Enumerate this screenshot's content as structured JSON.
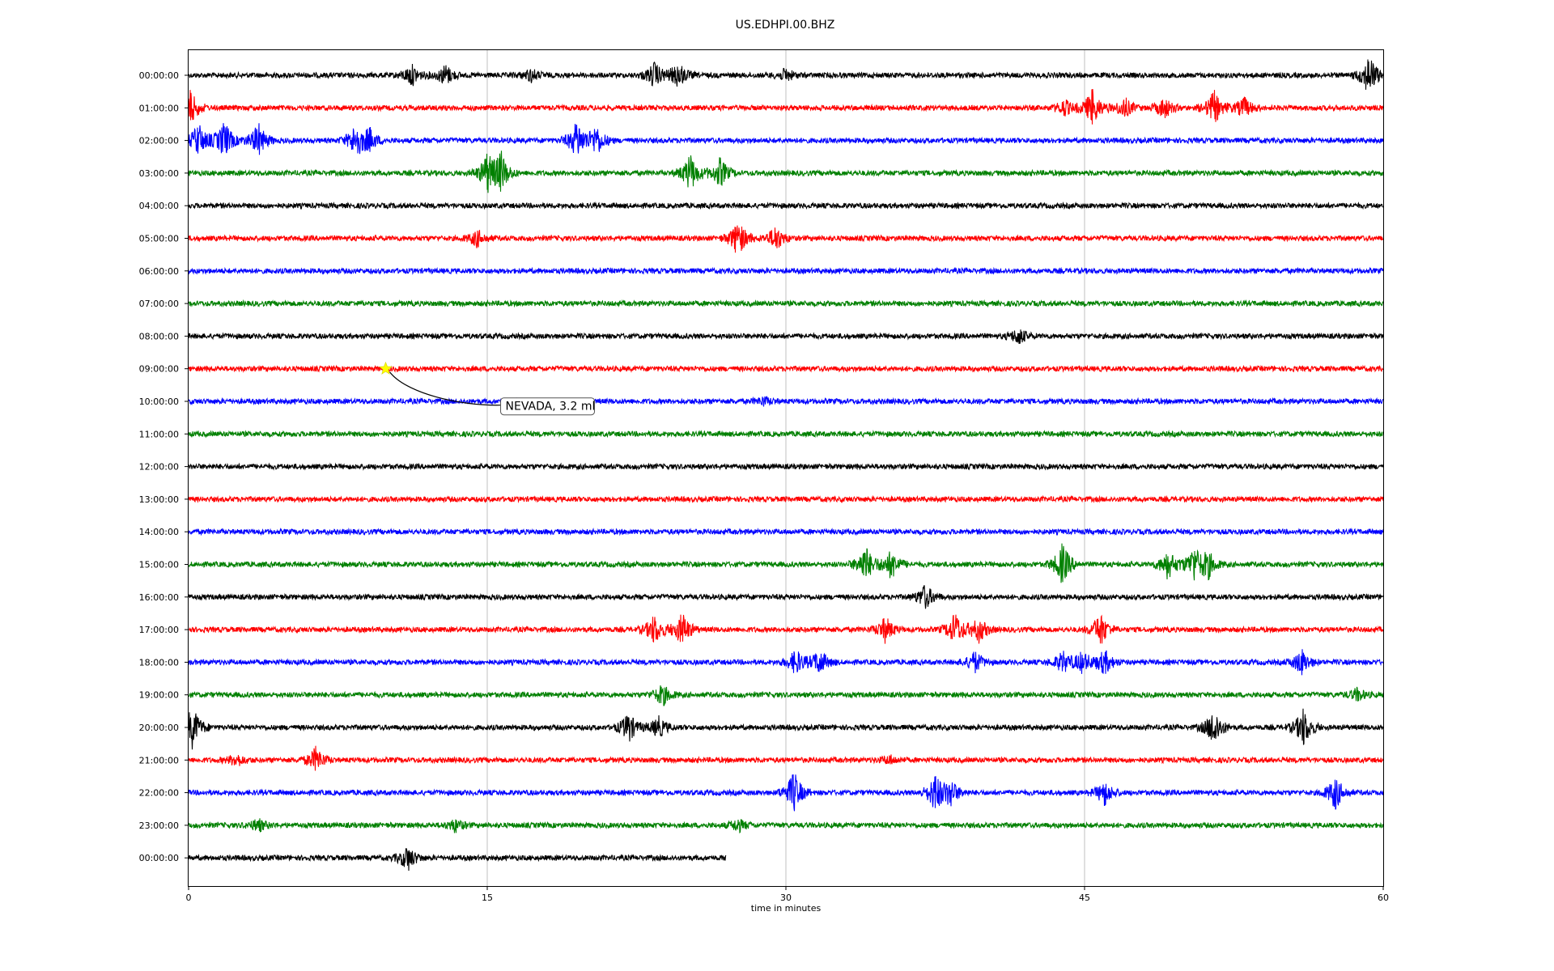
{
  "chart_data": {
    "type": "line",
    "title": "US.EDHPI.00.BHZ",
    "xlabel": "time in minutes",
    "xlim": [
      0,
      60
    ],
    "x_ticks": [
      0,
      15,
      30,
      45,
      60
    ],
    "grid": "vertical",
    "trace_colors": [
      "#000000",
      "#ff0000",
      "#0000ff",
      "#008000"
    ],
    "rows": [
      {
        "label": "00:00:00",
        "end_minute": 60,
        "events": [
          [
            11.2,
            0.5
          ],
          [
            12.9,
            0.5
          ],
          [
            17.2,
            0.3
          ],
          [
            23.4,
            0.6
          ],
          [
            24.6,
            0.6
          ],
          [
            30.0,
            0.3
          ],
          [
            59.3,
            1.0
          ]
        ]
      },
      {
        "label": "01:00:00",
        "end_minute": 60,
        "events": [
          [
            0.1,
            0.8
          ],
          [
            44.0,
            0.4
          ],
          [
            45.4,
            0.9
          ],
          [
            47.0,
            0.5
          ],
          [
            49.0,
            0.5
          ],
          [
            51.5,
            0.8
          ],
          [
            53.0,
            0.5
          ]
        ]
      },
      {
        "label": "02:00:00",
        "end_minute": 60,
        "events": [
          [
            0.5,
            0.8
          ],
          [
            1.8,
            0.9
          ],
          [
            3.5,
            0.8
          ],
          [
            8.4,
            0.8
          ],
          [
            9.1,
            0.5
          ],
          [
            19.5,
            0.9
          ],
          [
            20.5,
            0.7
          ]
        ]
      },
      {
        "label": "03:00:00",
        "end_minute": 60,
        "events": [
          [
            15.0,
            0.9
          ],
          [
            15.7,
            0.9
          ],
          [
            25.2,
            0.9
          ],
          [
            26.7,
            0.7
          ]
        ]
      },
      {
        "label": "04:00:00",
        "end_minute": 60,
        "events": []
      },
      {
        "label": "05:00:00",
        "end_minute": 60,
        "events": [
          [
            14.5,
            0.4
          ],
          [
            27.6,
            0.9
          ],
          [
            29.5,
            0.6
          ]
        ]
      },
      {
        "label": "06:00:00",
        "end_minute": 60,
        "events": []
      },
      {
        "label": "07:00:00",
        "end_minute": 60,
        "events": []
      },
      {
        "label": "08:00:00",
        "end_minute": 60,
        "events": [
          [
            41.7,
            0.4
          ]
        ]
      },
      {
        "label": "09:00:00",
        "end_minute": 60,
        "events": []
      },
      {
        "label": "10:00:00",
        "end_minute": 60,
        "events": [
          [
            28.9,
            0.2
          ]
        ]
      },
      {
        "label": "11:00:00",
        "end_minute": 60,
        "events": []
      },
      {
        "label": "12:00:00",
        "end_minute": 60,
        "events": []
      },
      {
        "label": "13:00:00",
        "end_minute": 60,
        "events": []
      },
      {
        "label": "14:00:00",
        "end_minute": 60,
        "events": []
      },
      {
        "label": "15:00:00",
        "end_minute": 60,
        "events": [
          [
            34.0,
            0.9
          ],
          [
            35.3,
            0.7
          ],
          [
            43.9,
            1.0
          ],
          [
            49.2,
            0.7
          ],
          [
            50.5,
            0.8
          ],
          [
            51.2,
            0.6
          ]
        ]
      },
      {
        "label": "16:00:00",
        "end_minute": 60,
        "events": [
          [
            37.0,
            0.6
          ]
        ]
      },
      {
        "label": "17:00:00",
        "end_minute": 60,
        "events": [
          [
            23.4,
            0.7
          ],
          [
            24.8,
            0.8
          ],
          [
            35.0,
            0.6
          ],
          [
            38.5,
            0.8
          ],
          [
            39.7,
            0.6
          ],
          [
            45.8,
            0.8
          ]
        ]
      },
      {
        "label": "18:00:00",
        "end_minute": 60,
        "events": [
          [
            30.5,
            0.6
          ],
          [
            31.7,
            0.6
          ],
          [
            39.5,
            0.5
          ],
          [
            43.9,
            0.5
          ],
          [
            44.9,
            0.5
          ],
          [
            46.0,
            0.6
          ],
          [
            55.9,
            0.6
          ]
        ]
      },
      {
        "label": "19:00:00",
        "end_minute": 60,
        "events": [
          [
            23.8,
            0.5
          ],
          [
            58.7,
            0.3
          ]
        ]
      },
      {
        "label": "20:00:00",
        "end_minute": 60,
        "events": [
          [
            0.2,
            1.0
          ],
          [
            22.1,
            0.7
          ],
          [
            23.6,
            0.5
          ],
          [
            51.5,
            0.9
          ],
          [
            56.0,
            0.9
          ]
        ]
      },
      {
        "label": "21:00:00",
        "end_minute": 60,
        "events": [
          [
            2.4,
            0.3
          ],
          [
            6.4,
            0.6
          ],
          [
            35.2,
            0.2
          ]
        ]
      },
      {
        "label": "22:00:00",
        "end_minute": 60,
        "events": [
          [
            30.4,
            1.0
          ],
          [
            37.5,
            0.9
          ],
          [
            38.3,
            0.6
          ],
          [
            46.0,
            0.6
          ],
          [
            57.6,
            0.8
          ]
        ]
      },
      {
        "label": "23:00:00",
        "end_minute": 60,
        "events": [
          [
            3.5,
            0.3
          ],
          [
            13.4,
            0.3
          ],
          [
            27.6,
            0.3
          ]
        ]
      },
      {
        "label": "00:00:00",
        "end_minute": 27,
        "events": [
          [
            11.0,
            0.6
          ]
        ]
      }
    ],
    "annotation": {
      "text": "NEVADA, 3.2 ml",
      "row": 9,
      "minute": 9.9,
      "marker_color": "#ffff00"
    }
  }
}
